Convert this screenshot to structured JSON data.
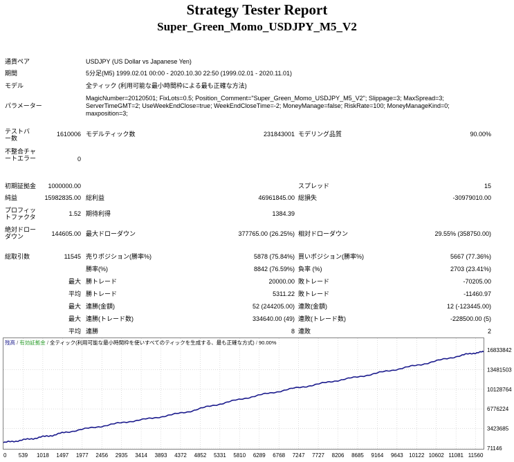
{
  "report": {
    "title": "Strategy Tester Report",
    "subtitle": "Super_Green_Momo_USDJPY_M5_V2"
  },
  "info": {
    "symbol_label": "通貨ペア",
    "symbol_value": "USDJPY (US Dollar vs Japanese Yen)",
    "period_label": "期間",
    "period_value": "5分足(M5) 1999.02.01 00:00 - 2020.10.30 22:50 (1999.02.01 - 2020.11.01)",
    "model_label": "モデル",
    "model_value": "全ティック (利用可能な最小時間枠による最も正確な方法)",
    "params_label": "パラメーター",
    "params_value": "MagicNumber=20120501; FixLots=0.5; Position_Comment=\"Super_Green_Momo_USDJPY_M5_V2\"; Slippage=3; MaxSpread=3; ServerTimeGMT=2; UseWeekEndClose=true; WeekEndCloseTime=-2; MoneyManage=false; RiskRate=100; MoneyManageKind=0; maxposition=3;"
  },
  "stats": {
    "bars_label": "テストバー数",
    "bars_value": "1610006",
    "ticks_label": "モデルティック数",
    "ticks_value": "231843001",
    "quality_label": "モデリング品質",
    "quality_value": "90.00%",
    "mismatch_label": "不整合チャートエラー",
    "mismatch_value": "0",
    "deposit_label": "初期証拠金",
    "deposit_value": "1000000.00",
    "spread_label": "スプレッド",
    "spread_value": "15",
    "net_label": "純益",
    "net_value": "15982835.00",
    "gross_profit_label": "総利益",
    "gross_profit_value": "46961845.00",
    "gross_loss_label": "総損失",
    "gross_loss_value": "-30979010.00",
    "pf_label": "プロフィットファクタ",
    "pf_value": "1.52",
    "expected_label": "期待利得",
    "expected_value": "1384.39",
    "abs_dd_label": "絶対ドローダウン",
    "abs_dd_value": "144605.00",
    "max_dd_label": "最大ドローダウン",
    "max_dd_value": "377765.00 (26.25%)",
    "rel_dd_label": "相対ドローダウン",
    "rel_dd_value": "29.55% (358750.00)",
    "trades_label": "総取引数",
    "trades_value": "11545",
    "short_label": "売りポジション(勝率%)",
    "short_value": "5878 (75.84%)",
    "long_label": "買いポジション(勝率%)",
    "long_value": "5667 (77.36%)",
    "win_pct_label": "勝率(%)",
    "win_pct_value": "8842 (76.59%)",
    "loss_pct_label": "負率 (%)",
    "loss_pct_value": "2703 (23.41%)",
    "max_label": "最大",
    "avg_label": "平均",
    "max_win_label": "勝トレード",
    "max_win_value": "20000.00",
    "max_loss_label": "敗トレード",
    "max_loss_value": "-70205.00",
    "avg_win_label": "勝トレード",
    "avg_win_value": "5311.22",
    "avg_loss_label": "敗トレード",
    "avg_loss_value": "-11460.97",
    "cons_win_amt_label": "連勝(金額)",
    "cons_win_amt_value": "52 (244205.00)",
    "cons_loss_amt_label": "連敗(金額)",
    "cons_loss_amt_value": "12 (-123445.00)",
    "cons_win_cnt_label": "連勝(トレード数)",
    "cons_win_cnt_value": "334640.00 (49)",
    "cons_loss_cnt_label": "連敗(トレード数)",
    "cons_loss_cnt_value": "-228500.00 (5)",
    "avg_cons_win_label": "連勝",
    "avg_cons_win_value": "8",
    "avg_cons_loss_label": "連敗",
    "avg_cons_loss_value": "2"
  },
  "chart_data": {
    "type": "line",
    "legend": {
      "balance": "残高",
      "sep": " / ",
      "equity": "有効証拠金",
      "sep2": " / ",
      "model": "全ティック(利用可能な最小時間枠を使いすべてのティックを生成する、最も正確な方式)",
      "sep3": " / ",
      "quality": "90.00%"
    },
    "colors": {
      "balance": "#1a1a8c",
      "equity": "#2e9e2e",
      "grid": "#c8c8c8"
    },
    "x_ticks": [
      "0",
      "539",
      "1018",
      "1497",
      "1977",
      "2456",
      "2935",
      "3414",
      "3893",
      "4372",
      "4852",
      "5331",
      "5810",
      "6289",
      "6768",
      "7247",
      "7727",
      "8206",
      "8685",
      "9164",
      "9643",
      "10122",
      "10602",
      "11081",
      "11560"
    ],
    "y_ticks": [
      "16833842",
      "13481503",
      "10128764",
      "6776224",
      "3423685",
      "71146"
    ],
    "ylim": [
      71146,
      16833842
    ],
    "xlim": [
      0,
      11545
    ],
    "series": [
      {
        "x": [
          0,
          300,
          600,
          900,
          1200,
          1500,
          2000,
          2500,
          3000,
          3500,
          4000,
          4500,
          5000,
          5500,
          6000,
          6500,
          7000,
          7500,
          8000,
          8500,
          9000,
          9500,
          10000,
          10500,
          11000,
          11300,
          11545
        ],
        "y": [
          1000000,
          1300000,
          1600000,
          1950000,
          2300000,
          2800000,
          3400000,
          4000000,
          4600000,
          5100000,
          5700000,
          6400000,
          7300000,
          8100000,
          8900000,
          9600000,
          10300000,
          10900000,
          11600000,
          12200000,
          12900000,
          13600000,
          14300000,
          15100000,
          15900000,
          16300000,
          16500000
        ]
      }
    ]
  }
}
